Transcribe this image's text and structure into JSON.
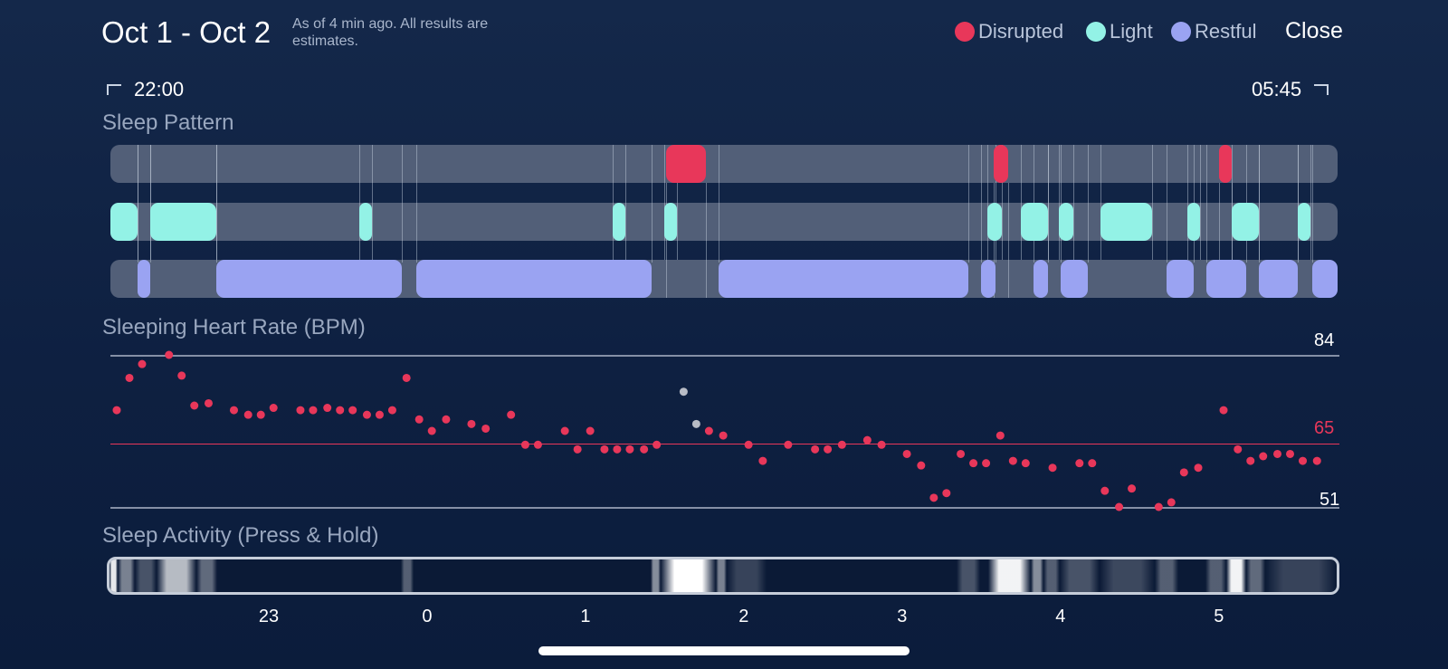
{
  "header": {
    "title": "Oct 1 - Oct 2",
    "as_of": "As of 4 min ago. All results are estimates.",
    "close_label": "Close"
  },
  "legend": [
    {
      "label": "Disrupted",
      "color": "#e8375a"
    },
    {
      "label": "Light",
      "color": "#93f2e6"
    },
    {
      "label": "Restful",
      "color": "#9aa3f2"
    }
  ],
  "range": {
    "start": "22:00",
    "end": "05:45"
  },
  "sleep_pattern": {
    "title": "Sleep Pattern",
    "start_hour": 22.0,
    "end_hour": 29.75,
    "disrupted": [
      [
        25.51,
        25.76
      ],
      [
        27.58,
        27.67
      ],
      [
        29.0,
        29.08
      ]
    ],
    "light": [
      [
        22.0,
        22.17
      ],
      [
        22.25,
        22.67
      ],
      [
        23.57,
        23.65
      ],
      [
        25.17,
        25.25
      ],
      [
        25.5,
        25.58
      ],
      [
        27.54,
        27.63
      ],
      [
        27.75,
        27.92
      ],
      [
        27.99,
        28.08
      ],
      [
        28.25,
        28.58
      ],
      [
        28.8,
        28.88
      ],
      [
        29.08,
        29.25
      ],
      [
        29.5,
        29.58
      ]
    ],
    "restful": [
      [
        22.17,
        22.25
      ],
      [
        22.67,
        23.84
      ],
      [
        23.93,
        25.42
      ],
      [
        25.84,
        27.42
      ],
      [
        27.5,
        27.59
      ],
      [
        27.83,
        27.92
      ],
      [
        28.0,
        28.17
      ],
      [
        28.67,
        28.84
      ],
      [
        28.92,
        29.17
      ],
      [
        29.25,
        29.5
      ],
      [
        29.59,
        29.75
      ]
    ]
  },
  "heart_rate": {
    "title": "Sleeping Heart Rate (BPM)",
    "max_label": "84",
    "avg_label": "65",
    "min_label": "51",
    "max": 84,
    "avg": 65,
    "min": 51,
    "avg_color": "#e8375a",
    "point_color": "#e8375a",
    "highlight_color": "#b8bcc6",
    "points": [
      [
        22.04,
        72
      ],
      [
        22.12,
        79
      ],
      [
        22.2,
        82
      ],
      [
        22.37,
        84
      ],
      [
        22.45,
        79.5
      ],
      [
        22.53,
        73
      ],
      [
        22.62,
        73.5
      ],
      [
        22.78,
        72
      ],
      [
        22.87,
        71
      ],
      [
        22.95,
        71
      ],
      [
        23.03,
        72.5
      ],
      [
        23.2,
        72
      ],
      [
        23.28,
        72
      ],
      [
        23.37,
        72.5
      ],
      [
        23.45,
        72
      ],
      [
        23.53,
        72
      ],
      [
        23.62,
        71
      ],
      [
        23.7,
        71
      ],
      [
        23.78,
        72
      ],
      [
        23.87,
        79
      ],
      [
        23.95,
        70
      ],
      [
        24.03,
        67.5
      ],
      [
        24.12,
        70
      ],
      [
        24.28,
        69
      ],
      [
        24.37,
        68
      ],
      [
        24.53,
        71
      ],
      [
        24.62,
        64.5
      ],
      [
        24.7,
        64.5
      ],
      [
        24.87,
        67.5
      ],
      [
        24.95,
        63.5
      ],
      [
        25.03,
        67.5
      ],
      [
        25.12,
        63.5
      ],
      [
        25.2,
        63.5
      ],
      [
        25.28,
        63.5
      ],
      [
        25.37,
        63.5
      ],
      [
        25.45,
        64.5
      ],
      [
        25.62,
        76,
        "h"
      ],
      [
        25.7,
        69,
        "h"
      ],
      [
        25.78,
        67.5
      ],
      [
        25.87,
        66.5
      ],
      [
        26.03,
        64.5
      ],
      [
        26.12,
        61
      ],
      [
        26.28,
        64.5
      ],
      [
        26.45,
        63.5
      ],
      [
        26.53,
        63.5
      ],
      [
        26.62,
        64.5
      ],
      [
        26.78,
        65.5
      ],
      [
        26.87,
        64.5
      ],
      [
        27.03,
        62.5
      ],
      [
        27.12,
        60
      ],
      [
        27.2,
        53
      ],
      [
        27.28,
        54
      ],
      [
        27.37,
        62.5
      ],
      [
        27.45,
        60.5
      ],
      [
        27.53,
        60.5
      ],
      [
        27.62,
        66.5
      ],
      [
        27.7,
        61
      ],
      [
        27.78,
        60.5
      ],
      [
        27.95,
        59.5
      ],
      [
        28.12,
        60.5
      ],
      [
        28.2,
        60.5
      ],
      [
        28.28,
        54.5
      ],
      [
        28.37,
        51
      ],
      [
        28.45,
        55
      ],
      [
        28.62,
        51
      ],
      [
        28.7,
        52
      ],
      [
        28.78,
        58.5
      ],
      [
        28.87,
        59.5
      ],
      [
        29.03,
        72
      ],
      [
        29.12,
        63.5
      ],
      [
        29.2,
        61
      ],
      [
        29.28,
        62
      ],
      [
        29.37,
        62.5
      ],
      [
        29.45,
        62.5
      ],
      [
        29.53,
        61
      ],
      [
        29.62,
        61
      ]
    ]
  },
  "activity": {
    "title": "Sleep Activity (Press & Hold)",
    "bursts": [
      [
        22.0,
        22.05,
        0.9
      ],
      [
        22.05,
        22.16,
        0.45
      ],
      [
        22.16,
        22.3,
        0.25
      ],
      [
        22.3,
        22.55,
        0.7
      ],
      [
        22.55,
        22.68,
        0.35
      ],
      [
        23.84,
        23.92,
        0.3
      ],
      [
        25.42,
        25.48,
        0.5
      ],
      [
        25.48,
        25.83,
        1.0
      ],
      [
        25.83,
        25.9,
        0.45
      ],
      [
        25.9,
        26.15,
        0.18
      ],
      [
        27.35,
        27.5,
        0.25
      ],
      [
        27.55,
        27.82,
        0.95
      ],
      [
        27.82,
        27.9,
        0.5
      ],
      [
        27.9,
        28.0,
        0.3
      ],
      [
        28.0,
        28.25,
        0.25
      ],
      [
        28.25,
        28.6,
        0.2
      ],
      [
        28.6,
        28.75,
        0.3
      ],
      [
        28.92,
        29.05,
        0.3
      ],
      [
        29.05,
        29.18,
        0.95
      ],
      [
        29.18,
        29.3,
        0.35
      ],
      [
        29.3,
        29.75,
        0.18
      ]
    ]
  },
  "axis": {
    "ticks": [
      {
        "hour": 23,
        "label": "23"
      },
      {
        "hour": 24,
        "label": "0"
      },
      {
        "hour": 25,
        "label": "1"
      },
      {
        "hour": 26,
        "label": "2"
      },
      {
        "hour": 27,
        "label": "3"
      },
      {
        "hour": 28,
        "label": "4"
      },
      {
        "hour": 29,
        "label": "5"
      }
    ]
  }
}
